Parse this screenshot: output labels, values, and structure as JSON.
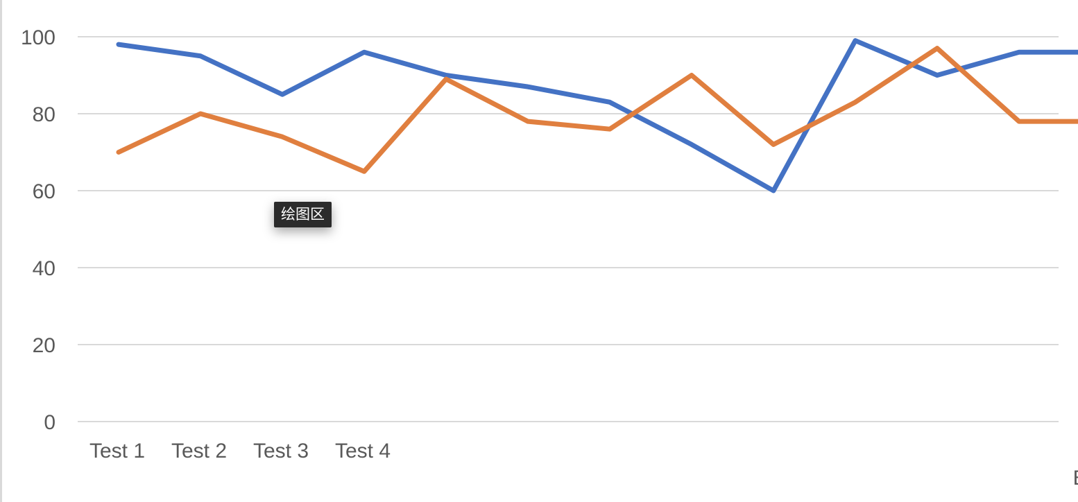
{
  "tooltip": {
    "text": "绘图区"
  },
  "colors": {
    "series1": "#4472c4",
    "series2": "#e07f3f",
    "grid": "#d9d9d9",
    "text": "#595959"
  },
  "chart_data": {
    "type": "line",
    "title": "",
    "xlabel": "",
    "ylabel": "",
    "ylim": [
      0,
      100
    ],
    "yticks": [
      0,
      20,
      40,
      60,
      80,
      100
    ],
    "grid": true,
    "categories": [
      "Test 1",
      "Test 2",
      "Test 3",
      "Test 4",
      "",
      "",
      "",
      "",
      "",
      "",
      "",
      "",
      "Final Exam"
    ],
    "series": [
      {
        "color": "#4472c4",
        "values": [
          98,
          95,
          85,
          96,
          90,
          87,
          83,
          72,
          60,
          99,
          90,
          96,
          96
        ]
      },
      {
        "color": "#e07f3f",
        "values": [
          70,
          80,
          74,
          65,
          89,
          78,
          76,
          90,
          72,
          83,
          97,
          78,
          78
        ]
      }
    ]
  }
}
